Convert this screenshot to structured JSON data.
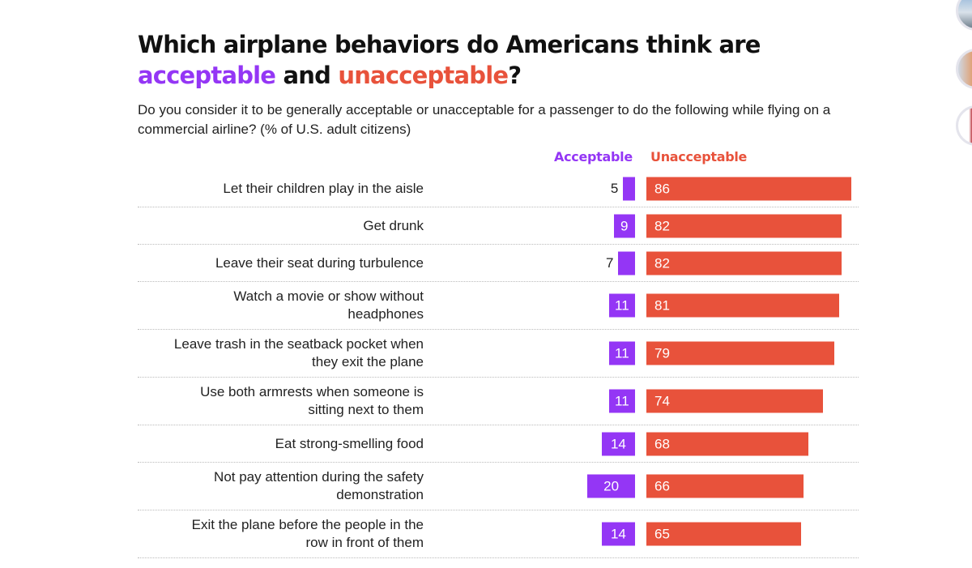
{
  "chart_data": {
    "type": "bar",
    "title_parts": [
      "Which airplane behaviors do Americans think are ",
      "acceptable",
      " and ",
      "unacceptable",
      "?"
    ],
    "subtitle": "Do you consider it to be generally acceptable or unacceptable for a passenger to do the following while flying on a commercial airline? (% of U.S. adult citizens)",
    "legend": [
      "Acceptable",
      "Unacceptable"
    ],
    "colors": {
      "acceptable": "#9436f5",
      "unacceptable": "#e8523b"
    },
    "categories": [
      [
        "Let their children play in the aisle"
      ],
      [
        "Get drunk"
      ],
      [
        "Leave their seat during turbulence"
      ],
      [
        "Watch a movie or show without",
        "headphones"
      ],
      [
        "Leave trash in the seatback pocket when",
        "they exit the plane"
      ],
      [
        "Use both armrests when someone is",
        "sitting next to them"
      ],
      [
        "Eat strong-smelling food"
      ],
      [
        "Not pay attention during the safety",
        "demonstration"
      ],
      [
        "Exit the plane before the people in the",
        "row in front of them"
      ]
    ],
    "series": [
      {
        "name": "Acceptable",
        "values": [
          5,
          9,
          7,
          11,
          11,
          11,
          14,
          20,
          14
        ]
      },
      {
        "name": "Unacceptable",
        "values": [
          86,
          82,
          82,
          81,
          79,
          74,
          68,
          66,
          65
        ]
      }
    ]
  }
}
